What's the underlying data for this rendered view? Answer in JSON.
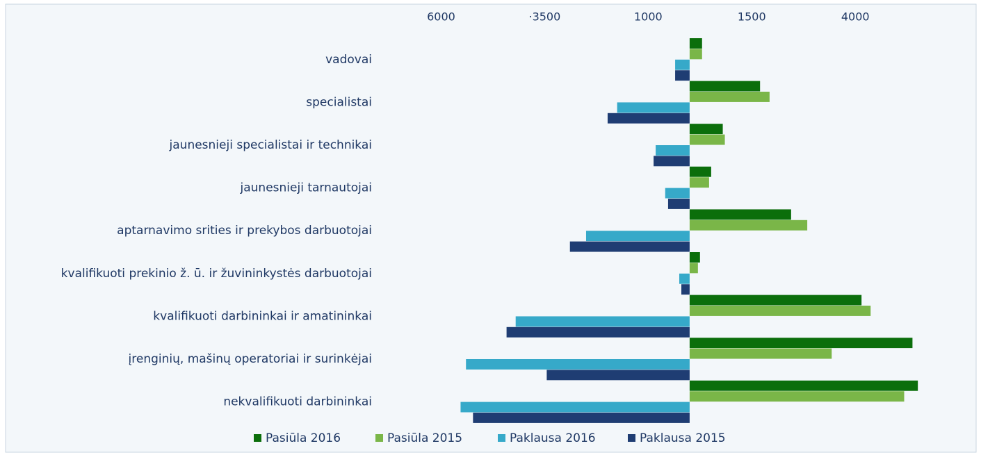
{
  "chart_data": {
    "type": "hbar",
    "categories": [
      "vadovai",
      "specialistai",
      "jaunesnieji specialistai ir technikai",
      "jaunesnieji tarnautojai",
      "aptarnavimo srities ir prekybos darbuotojai",
      "kvalifikuoti prekinio ž. ū. ir žuvininkystės darbuotojai",
      "kvalifikuoti darbininkai ir amatininkai",
      "įrenginių, mašinų operatoriai ir surinkėjai",
      "nekvalifikuoti darbininkai"
    ],
    "series": [
      {
        "name": "Pasiūla 2016",
        "color": "#0b6e0b",
        "values": [
          300,
          1700,
          800,
          520,
          2450,
          250,
          4150,
          5380,
          5510
        ]
      },
      {
        "name": "Pasiūla 2015",
        "color": "#7ab648",
        "values": [
          300,
          1930,
          850,
          470,
          2840,
          200,
          4370,
          3430,
          5180
        ]
      },
      {
        "name": "Paklausa 2016",
        "color": "#36a9c9",
        "values": [
          -350,
          -1750,
          -820,
          -590,
          -2500,
          -250,
          -4200,
          -5400,
          -5530
        ]
      },
      {
        "name": "Paklausa 2015",
        "color": "#1f3d73",
        "values": [
          -350,
          -1980,
          -870,
          -520,
          -2890,
          -200,
          -4420,
          -3450,
          -5230
        ]
      }
    ],
    "xlim": [
      -7250,
      6850
    ],
    "xticks": [
      {
        "value": -6000,
        "label": "6000"
      },
      {
        "value": -3500,
        "label": "·3500"
      },
      {
        "value": -1000,
        "label": "1000"
      },
      1500,
      4000
    ],
    "legend": "bottom"
  }
}
